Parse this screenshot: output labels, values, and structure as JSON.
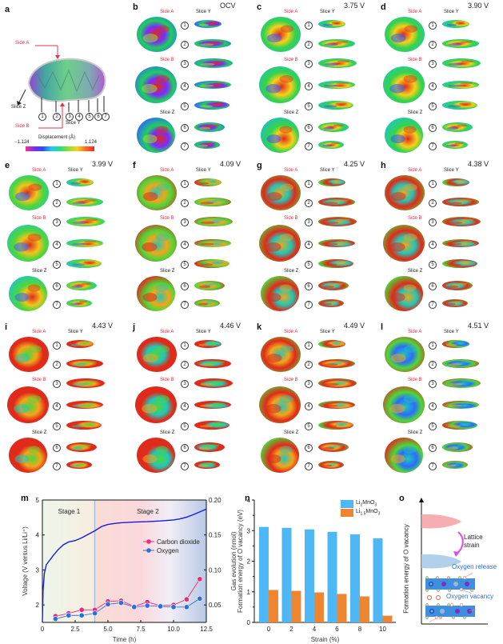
{
  "panel_a": {
    "label": "a",
    "side_a": "Side A",
    "side_b": "Side B",
    "slice_z": "Slice Z",
    "slice_y": "Slice Y",
    "slice_numbers": [
      "1",
      "2",
      "3",
      "4",
      "5",
      "6",
      "7"
    ],
    "colorbar_title": "Displacement (Å)",
    "colorbar_min": "−1.124",
    "colorbar_max": "1.124",
    "colorbar_colors": [
      "#ff2d8a",
      "#7b2cff",
      "#2b4dff",
      "#21c7ff",
      "#24e07a",
      "#8de02a",
      "#f5d21a",
      "#ff6a1a",
      "#ff2020"
    ]
  },
  "map_panels": [
    {
      "label": "b",
      "voltage": "OCV",
      "side_a": "Side A",
      "side_b": "Side B",
      "slice_y": "Slice Y",
      "slice_z": "Slice Z",
      "palette": [
        "#1fcf5a",
        "#2a6cff",
        "#e02a1a",
        "#7b2cff",
        "#9de02a"
      ]
    },
    {
      "label": "c",
      "voltage": "3.75 V",
      "side_a": "Side A",
      "side_b": "Side B",
      "slice_y": "Slice Y",
      "slice_z": "Slice Z",
      "palette": [
        "#36d34a",
        "#1fc3b0",
        "#e02a1a",
        "#f5d21a",
        "#3a54ff"
      ]
    },
    {
      "label": "d",
      "voltage": "3.90 V",
      "side_a": "Side A",
      "side_b": "Side B",
      "slice_y": "Slice Y",
      "slice_z": "Slice Z",
      "palette": [
        "#36d34a",
        "#20c8b8",
        "#e02a1a",
        "#f5d21a",
        "#2a5cff"
      ]
    },
    {
      "label": "e",
      "voltage": "3.99 V",
      "side_a": "Side A",
      "side_b": "Side B",
      "slice_y": "Slice Y",
      "slice_z": "Slice Z",
      "palette": [
        "#4fd63a",
        "#20c8b8",
        "#e02a1a",
        "#f2c41a",
        "#2a6cff"
      ]
    },
    {
      "label": "f",
      "voltage": "4.09 V",
      "side_a": "Side A",
      "side_b": "Side B",
      "slice_y": "Slice Y",
      "slice_z": "Slice Z",
      "palette": [
        "#4fd63a",
        "#e02a1a",
        "#20c8b8",
        "#f2a61a",
        "#e02a1a"
      ]
    },
    {
      "label": "g",
      "voltage": "4.25 V",
      "side_a": "Side A",
      "side_b": "Side B",
      "slice_y": "Slice Y",
      "slice_z": "Slice Z",
      "palette": [
        "#e02a1a",
        "#4fd63a",
        "#f2a61a",
        "#20c8b8",
        "#e02a1a"
      ]
    },
    {
      "label": "h",
      "voltage": "4.38 V",
      "side_a": "Side A",
      "side_b": "Side B",
      "slice_y": "Slice Y",
      "slice_z": "Slice Z",
      "palette": [
        "#e02a1a",
        "#4fd63a",
        "#f2a61a",
        "#20c8b8",
        "#e02a1a"
      ]
    },
    {
      "label": "i",
      "voltage": "4.43 V",
      "side_a": "Side A",
      "side_b": "Side B",
      "slice_y": "Slice Y",
      "slice_z": "Slice Z",
      "palette": [
        "#e02a1a",
        "#e02a1a",
        "#4fd63a",
        "#f2a61a",
        "#20c8b8"
      ]
    },
    {
      "label": "j",
      "voltage": "4.46 V",
      "side_a": "Side A",
      "side_b": "Side B",
      "slice_y": "Slice Y",
      "slice_z": "Slice Z",
      "palette": [
        "#e02a1a",
        "#e02a1a",
        "#4fd63a",
        "#20c8b8",
        "#f2a61a"
      ]
    },
    {
      "label": "k",
      "voltage": "4.49 V",
      "side_a": "Side A",
      "side_b": "Side B",
      "slice_y": "Slice Y",
      "slice_z": "Slice Z",
      "palette": [
        "#e02a1a",
        "#4fd63a",
        "#20c8b8",
        "#f2a61a",
        "#e02a1a"
      ]
    },
    {
      "label": "l",
      "voltage": "4.51 V",
      "side_a": "Side A",
      "side_b": "Side B",
      "slice_y": "Slice Y",
      "slice_z": "Slice Z",
      "palette": [
        "#4fd63a",
        "#e02a1a",
        "#20c8b8",
        "#2a6cff",
        "#f2a61a"
      ]
    }
  ],
  "slice_numbers": [
    "1",
    "2",
    "3",
    "4",
    "5",
    "6",
    "7"
  ],
  "chart_data": [
    {
      "panel": "m",
      "type": "line",
      "xlabel": "Time (h)",
      "ylabel": "Voltage (V versus Li/Li⁺)",
      "y2label": "Gas evolution (nmol)",
      "xlim": [
        0,
        12.5
      ],
      "ylim": [
        1.5,
        5
      ],
      "y2lim": [
        0.025,
        0.2
      ],
      "xticks": [
        "0",
        "2.5",
        "5.0",
        "7.5",
        "10.0",
        "12.5"
      ],
      "xtick_values": [
        0,
        2.5,
        5,
        7.5,
        10,
        12.5
      ],
      "yticks": [
        "2",
        "3",
        "4",
        "5"
      ],
      "ytick_values": [
        2,
        3,
        4,
        5
      ],
      "y2ticks": [
        "0.05",
        "0.10",
        "0.15",
        "0.20"
      ],
      "y2tick_values": [
        0.05,
        0.1,
        0.15,
        0.2
      ],
      "annotations": [
        "Stage 1",
        "Stage 2"
      ],
      "stage_boundary_x": 4,
      "legend": [
        "Carbon dioxide",
        "Oxygen"
      ],
      "legend_position": "center-right",
      "voltage_curve": {
        "name": "Voltage",
        "color": "#1a1adf",
        "x": [
          0,
          0.05,
          0.15,
          0.3,
          0.5,
          0.8,
          1.2,
          1.6,
          2.0,
          2.5,
          3.0,
          3.5,
          4.0,
          4.5,
          5.0,
          5.5,
          6.0,
          7.0,
          8.0,
          9.0,
          10.0,
          10.5,
          11.0,
          11.5,
          12.0,
          12.5
        ],
        "y": [
          1.5,
          2.4,
          2.9,
          3.15,
          3.25,
          3.4,
          3.58,
          3.72,
          3.8,
          3.84,
          3.92,
          4.02,
          4.12,
          4.24,
          4.3,
          4.33,
          4.35,
          4.37,
          4.38,
          4.4,
          4.43,
          4.46,
          4.51,
          4.58,
          4.66,
          4.74
        ]
      },
      "series": [
        {
          "name": "Carbon dioxide",
          "color": "#ee2a7b",
          "axis": "right",
          "x": [
            1,
            2,
            3,
            4,
            5,
            6,
            7,
            8,
            9,
            10,
            11,
            12
          ],
          "y": [
            0.034,
            0.038,
            0.043,
            0.043,
            0.055,
            0.056,
            0.048,
            0.054,
            0.049,
            0.05,
            0.058,
            0.087
          ]
        },
        {
          "name": "Oxygen",
          "color": "#2f6fdc",
          "axis": "right",
          "x": [
            1,
            2,
            3,
            4,
            5,
            6,
            7,
            8,
            9,
            10,
            11,
            12
          ],
          "y": [
            0.03,
            0.035,
            0.035,
            0.038,
            0.051,
            0.053,
            0.047,
            0.049,
            0.048,
            0.047,
            0.047,
            0.059
          ]
        }
      ]
    },
    {
      "panel": "n",
      "type": "bar",
      "xlabel": "Strain (%)",
      "ylabel": "Formation energy of O vacancy (eV)",
      "categories": [
        "0",
        "2",
        "4",
        "6",
        "8",
        "10"
      ],
      "ylim": [
        0,
        4
      ],
      "yticks": [
        "0",
        "1",
        "2",
        "3",
        "4"
      ],
      "ytick_values": [
        0,
        1,
        2,
        3,
        4
      ],
      "legend_position": "top-right",
      "series": [
        {
          "name": "Li2MnO3",
          "color": "#4db8f5",
          "values": [
            3.12,
            3.09,
            3.04,
            2.96,
            2.88,
            2.75
          ]
        },
        {
          "name": "Li1.5MnO3",
          "color": "#ee8530",
          "values": [
            1.06,
            1.03,
            0.98,
            0.93,
            0.85,
            0.22
          ]
        }
      ]
    }
  ],
  "legend_n": {
    "li2": {
      "prefix": "Li",
      "sub1": "2",
      "mid": "MnO",
      "sub2": "3"
    },
    "li15": {
      "prefix": "Li",
      "sub1": "1.5",
      "mid": "MnO",
      "sub2": "3"
    }
  },
  "panel_o": {
    "label": "o",
    "ylabel": "Formation energy of O vacancy",
    "lattice_strain": [
      "Lattice",
      "strain"
    ],
    "oxygen_release": "Oxygen release",
    "oxygen_vacancy": "Oxygen vacancy",
    "colors": {
      "upper_lobe": "#f59aa0",
      "lower_lobe": "#a9cbe8",
      "slab": "#3f8fe0",
      "arrow": "#e04ce8",
      "text": "#2a6fd0"
    }
  },
  "panel_labels": {
    "m": "m",
    "n": "n"
  }
}
